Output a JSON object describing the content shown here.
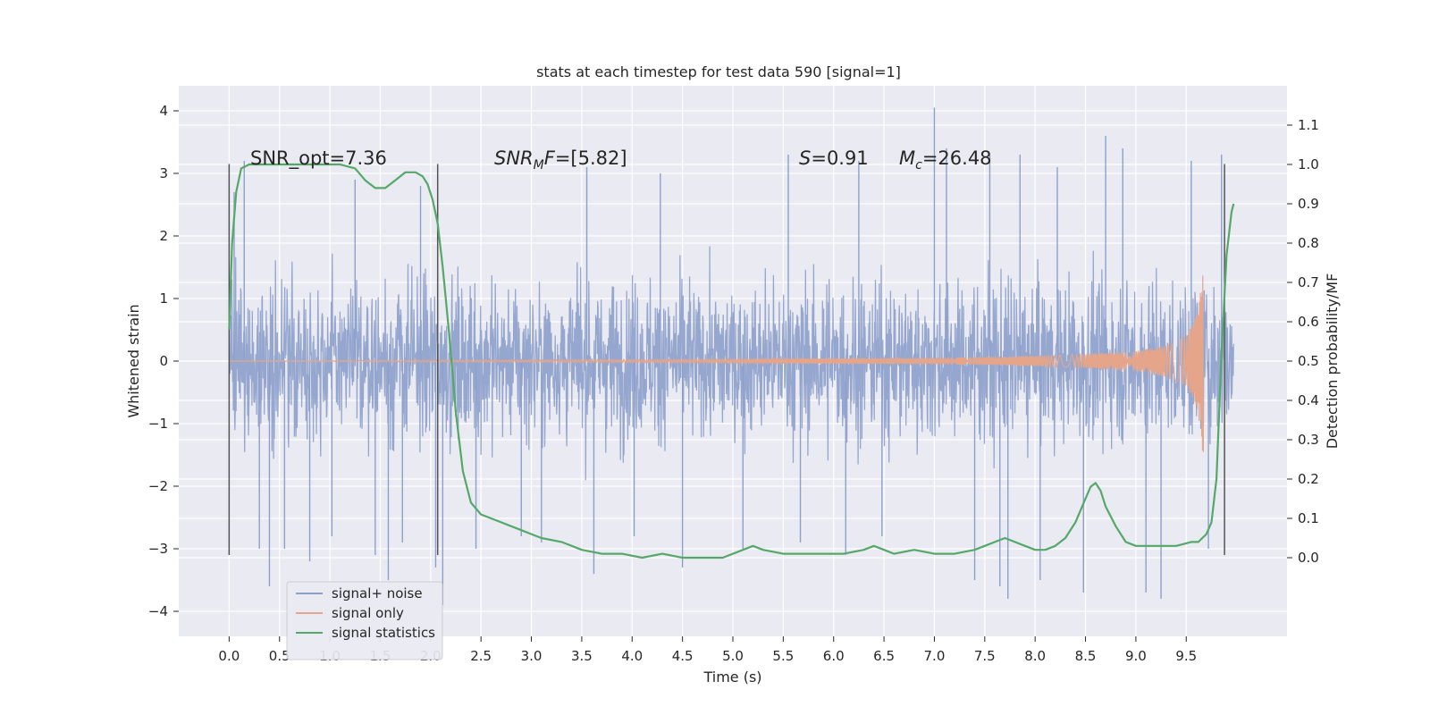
{
  "chart_data": {
    "type": "line",
    "title": "stats at each timestep for test data 590 [signal=1]",
    "xlabel": "Time (s)",
    "ylabel": "Whitened strain",
    "ylabel_right": "Detection probability/MF",
    "xlim": [
      -0.5,
      10.5
    ],
    "ylim": [
      -4.4,
      4.4
    ],
    "ylim_right": [
      -0.2,
      1.2
    ],
    "x_ticks": [
      "0.0",
      "0.5",
      "1.0",
      "1.5",
      "2.0",
      "2.5",
      "3.0",
      "3.5",
      "4.0",
      "4.5",
      "5.0",
      "5.5",
      "6.0",
      "6.5",
      "7.0",
      "7.5",
      "8.0",
      "8.5",
      "9.0",
      "9.5"
    ],
    "y_ticks": [
      "4",
      "3",
      "2",
      "1",
      "0",
      "−1",
      "−2",
      "−3",
      "−4"
    ],
    "y_ticks_right": [
      "1.1",
      "1.0",
      "0.9",
      "0.8",
      "0.7",
      "0.6",
      "0.5",
      "0.4",
      "0.3",
      "0.2",
      "0.1",
      "0.0"
    ],
    "grid": true,
    "legend_position": "lower-left",
    "annotations": {
      "snr_opt": "SNR_opt=7.36",
      "snr_mf_base": "SNR",
      "snr_mf_sub": "M",
      "snr_mf_tail": "F",
      "snr_mf_value": "=[5.82]",
      "s_var": "S",
      "s_value": "=0.91",
      "mc_var": "M",
      "mc_sub": "c",
      "mc_value": "=26.48"
    },
    "window_markers": [
      0.0,
      2.07,
      9.88
    ],
    "series": [
      {
        "name": "signal+ noise",
        "color": "#8da0cb",
        "t_range": [
          0.0,
          9.97
        ],
        "envelope_upper": [
          1.9,
          1.9,
          1.9
        ],
        "envelope_lower": [
          -2.0,
          -2.0,
          -2.0
        ],
        "peaks": [
          [
            0.05,
            2.7
          ],
          [
            0.15,
            3.2
          ],
          [
            0.3,
            -3.0
          ],
          [
            0.4,
            -3.6
          ],
          [
            0.55,
            -3.0
          ],
          [
            0.8,
            -3.2
          ],
          [
            1.02,
            -2.8
          ],
          [
            1.25,
            2.9
          ],
          [
            1.45,
            -3.1
          ],
          [
            1.58,
            -3.5
          ],
          [
            1.72,
            -2.9
          ],
          [
            1.9,
            2.8
          ],
          [
            2.05,
            -3.3
          ],
          [
            2.12,
            -3.9
          ],
          [
            2.45,
            -3.0
          ],
          [
            2.9,
            -2.8
          ],
          [
            3.1,
            -2.9
          ],
          [
            3.55,
            3.1
          ],
          [
            3.62,
            -3.4
          ],
          [
            4.02,
            -2.8
          ],
          [
            4.28,
            3.0
          ],
          [
            4.5,
            -3.3
          ],
          [
            5.1,
            -3.0
          ],
          [
            5.55,
            3.3
          ],
          [
            5.67,
            -2.9
          ],
          [
            6.12,
            -3.1
          ],
          [
            6.25,
            3.2
          ],
          [
            6.48,
            -2.8
          ],
          [
            7.0,
            4.05
          ],
          [
            7.12,
            3.4
          ],
          [
            7.4,
            -3.5
          ],
          [
            7.55,
            3.3
          ],
          [
            7.65,
            -3.6
          ],
          [
            7.73,
            -3.8
          ],
          [
            7.85,
            3.3
          ],
          [
            8.05,
            -3.5
          ],
          [
            8.22,
            3.1
          ],
          [
            8.48,
            -3.7
          ],
          [
            8.7,
            3.6
          ],
          [
            8.87,
            3.4
          ],
          [
            9.1,
            -3.7
          ],
          [
            9.25,
            -3.8
          ],
          [
            9.55,
            3.2
          ],
          [
            9.72,
            -3.0
          ],
          [
            9.85,
            3.3
          ]
        ]
      },
      {
        "name": "signal only",
        "color": "#e5a58a",
        "amplitude_t": [
          0.0,
          5.0,
          7.0,
          8.0,
          8.5,
          9.0,
          9.3,
          9.5,
          9.6,
          9.65,
          9.67
        ],
        "amplitude": [
          0.0,
          0.03,
          0.05,
          0.08,
          0.11,
          0.16,
          0.25,
          0.4,
          0.7,
          1.2,
          1.8
        ]
      },
      {
        "name": "signal statistics",
        "color": "#55a868",
        "axis": "right",
        "x": [
          0.0,
          0.03,
          0.07,
          0.12,
          0.2,
          0.3,
          0.5,
          0.8,
          1.1,
          1.25,
          1.35,
          1.45,
          1.55,
          1.65,
          1.75,
          1.85,
          1.92,
          1.97,
          2.02,
          2.07,
          2.12,
          2.18,
          2.25,
          2.32,
          2.4,
          2.5,
          2.6,
          2.7,
          2.8,
          2.9,
          3.0,
          3.1,
          3.3,
          3.5,
          3.7,
          3.9,
          4.1,
          4.3,
          4.5,
          4.7,
          4.9,
          5.1,
          5.2,
          5.3,
          5.5,
          5.7,
          5.9,
          6.1,
          6.3,
          6.4,
          6.5,
          6.6,
          6.8,
          7.0,
          7.2,
          7.4,
          7.5,
          7.6,
          7.7,
          7.8,
          7.9,
          8.0,
          8.1,
          8.2,
          8.3,
          8.4,
          8.5,
          8.55,
          8.6,
          8.65,
          8.7,
          8.8,
          8.9,
          9.0,
          9.2,
          9.4,
          9.55,
          9.62,
          9.7,
          9.75,
          9.8,
          9.85,
          9.9,
          9.95,
          9.97
        ],
        "y": [
          0.58,
          0.8,
          0.93,
          0.99,
          1.0,
          1.0,
          1.0,
          1.0,
          1.0,
          0.99,
          0.96,
          0.94,
          0.94,
          0.96,
          0.98,
          0.98,
          0.97,
          0.95,
          0.91,
          0.85,
          0.74,
          0.58,
          0.37,
          0.22,
          0.14,
          0.11,
          0.1,
          0.09,
          0.08,
          0.07,
          0.06,
          0.05,
          0.04,
          0.02,
          0.01,
          0.01,
          0.0,
          0.01,
          0.0,
          0.0,
          0.0,
          0.02,
          0.03,
          0.02,
          0.01,
          0.01,
          0.01,
          0.01,
          0.02,
          0.03,
          0.02,
          0.01,
          0.02,
          0.01,
          0.01,
          0.02,
          0.03,
          0.04,
          0.05,
          0.04,
          0.03,
          0.02,
          0.02,
          0.03,
          0.05,
          0.09,
          0.15,
          0.18,
          0.19,
          0.17,
          0.13,
          0.08,
          0.04,
          0.03,
          0.03,
          0.03,
          0.04,
          0.04,
          0.06,
          0.09,
          0.2,
          0.52,
          0.77,
          0.88,
          0.9
        ]
      }
    ]
  }
}
